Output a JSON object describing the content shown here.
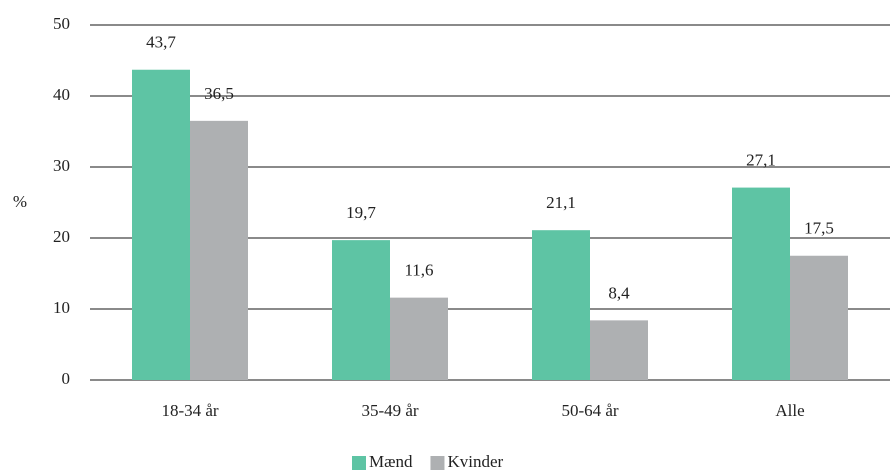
{
  "chart_data": {
    "type": "bar",
    "y_label": "%",
    "categories": [
      "18-34 år",
      "35-49 år",
      "50-64 år",
      "Alle"
    ],
    "series": [
      {
        "name": "Mænd",
        "color": "#5ec4a4",
        "values": [
          43.7,
          19.7,
          21.1,
          27.1
        ],
        "value_labels": [
          "43,7",
          "19,7",
          "21,1",
          "27,1"
        ]
      },
      {
        "name": "Kvinder",
        "color": "#aeb0b2",
        "values": [
          36.5,
          11.6,
          8.4,
          17.5
        ],
        "value_labels": [
          "36,5",
          "11,6",
          "8,4",
          "17,5"
        ]
      }
    ],
    "ylim": [
      0,
      50
    ],
    "yticks": [
      0,
      10,
      20,
      30,
      40,
      50
    ],
    "grid": true,
    "legend": "bottom"
  }
}
